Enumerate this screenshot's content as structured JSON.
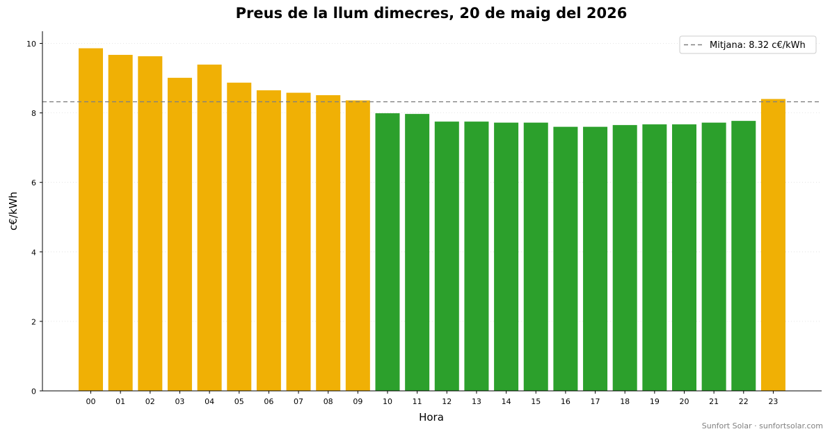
{
  "chart_data": {
    "type": "bar",
    "title": "Preus de la llum dimecres, 20 de maig del 2026",
    "xlabel": "Hora",
    "ylabel": "c€/kWh",
    "ylim": [
      0,
      10.35
    ],
    "yticks": [
      0,
      2,
      4,
      6,
      8,
      10
    ],
    "grid": "y-dotted",
    "legend_position": "top-right",
    "categories": [
      "00",
      "01",
      "02",
      "03",
      "04",
      "05",
      "06",
      "07",
      "08",
      "09",
      "10",
      "11",
      "12",
      "13",
      "14",
      "15",
      "16",
      "17",
      "18",
      "19",
      "20",
      "21",
      "22",
      "23"
    ],
    "values": [
      9.86,
      9.67,
      9.63,
      9.01,
      9.39,
      8.87,
      8.65,
      8.58,
      8.51,
      8.36,
      7.99,
      7.97,
      7.75,
      7.75,
      7.72,
      7.72,
      7.6,
      7.6,
      7.65,
      7.67,
      7.67,
      7.72,
      7.77,
      8.4
    ],
    "average": 8.32,
    "average_label": "Mitjana: 8.32 c€/kWh",
    "colors": {
      "above_average": "#f0b005",
      "below_average": "#2ca02c",
      "average_line": "#808080"
    }
  },
  "footer": {
    "credit": "Sunfort Solar · sunfortsolar.com"
  }
}
